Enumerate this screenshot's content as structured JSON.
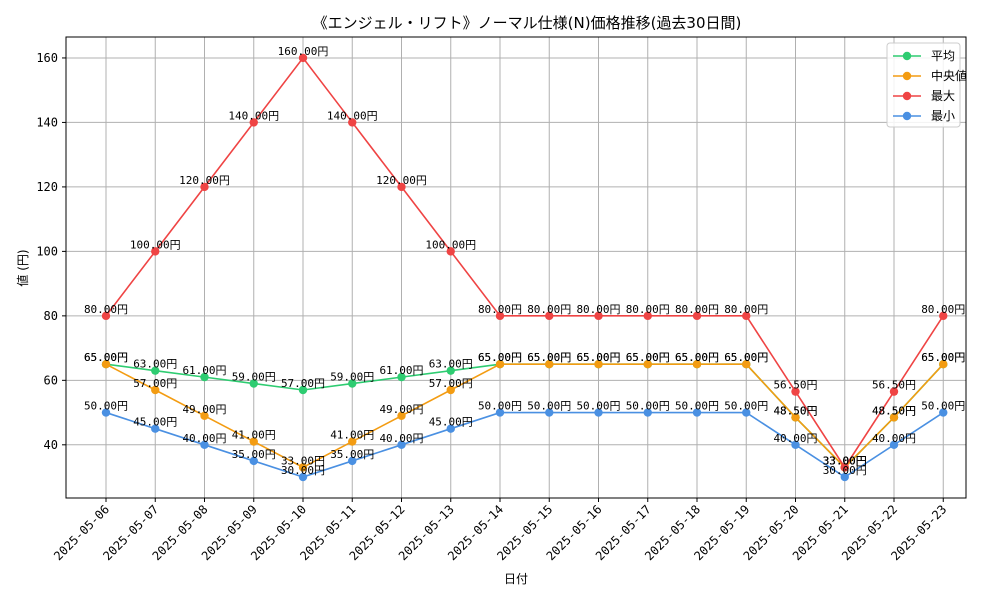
{
  "chart_data": {
    "type": "line",
    "title": "《エンジェル・リフト》ノーマル仕様(N)価格推移(過去30日間)",
    "xlabel": "日付",
    "ylabel": "値 (円)",
    "unit_suffix": "円",
    "ylim": [
      23.5,
      166.5
    ],
    "yticks": [
      40,
      60,
      80,
      100,
      120,
      140,
      160
    ],
    "grid": true,
    "legend_position": "top-right",
    "categories": [
      "2025-05-06",
      "2025-05-07",
      "2025-05-08",
      "2025-05-09",
      "2025-05-10",
      "2025-05-11",
      "2025-05-12",
      "2025-05-13",
      "2025-05-14",
      "2025-05-15",
      "2025-05-16",
      "2025-05-17",
      "2025-05-18",
      "2025-05-19",
      "2025-05-20",
      "2025-05-21",
      "2025-05-22",
      "2025-05-23"
    ],
    "series": [
      {
        "name": "平均",
        "color": "#2ecc71",
        "values": [
          65,
          63,
          61,
          59,
          57,
          59,
          61,
          63,
          65,
          65,
          65,
          65,
          65,
          65,
          48.5,
          33,
          48.5,
          65
        ]
      },
      {
        "name": "中央値",
        "color": "#f39c12",
        "values": [
          65,
          57,
          49,
          41,
          33,
          41,
          49,
          57,
          65,
          65,
          65,
          65,
          65,
          65,
          48.5,
          33,
          48.5,
          65
        ]
      },
      {
        "name": "最大",
        "color": "#ef4444",
        "values": [
          80,
          100,
          120,
          140,
          160,
          140,
          120,
          100,
          80,
          80,
          80,
          80,
          80,
          80,
          56.5,
          33,
          56.5,
          80
        ]
      },
      {
        "name": "最小",
        "color": "#4a90e2",
        "values": [
          50,
          45,
          40,
          35,
          30,
          35,
          40,
          45,
          50,
          50,
          50,
          50,
          50,
          50,
          40,
          30,
          40,
          50
        ]
      }
    ]
  }
}
